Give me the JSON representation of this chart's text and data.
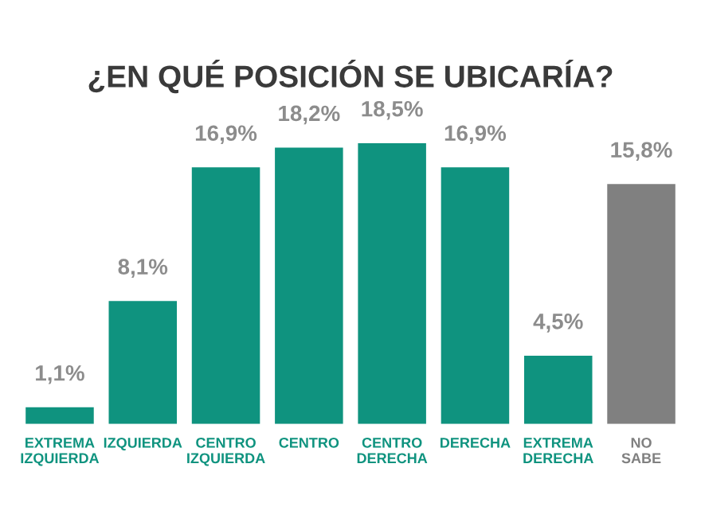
{
  "chart_data": {
    "type": "bar",
    "title": "¿EN QUÉ POSICIÓN SE UBICARÍA?",
    "categories": [
      "EXTREMA\nIZQUIERDA",
      "IZQUIERDA",
      "CENTRO\nIZQUIERDA",
      "CENTRO",
      "CENTRO\nDERECHA",
      "DERECHA",
      "EXTREMA\nDERECHA",
      "NO\nSABE"
    ],
    "values": [
      1.1,
      8.1,
      16.9,
      18.2,
      18.5,
      16.9,
      4.5,
      15.8
    ],
    "value_labels": [
      "1,1%",
      "8,1%",
      "16,9%",
      "18,2%",
      "18,5%",
      "16,9%",
      "4,5%",
      "15,8%"
    ],
    "colors": [
      "#0f937f",
      "#0f937f",
      "#0f937f",
      "#0f937f",
      "#0f937f",
      "#0f937f",
      "#0f937f",
      "#808080"
    ],
    "grid": false,
    "legend": false
  }
}
